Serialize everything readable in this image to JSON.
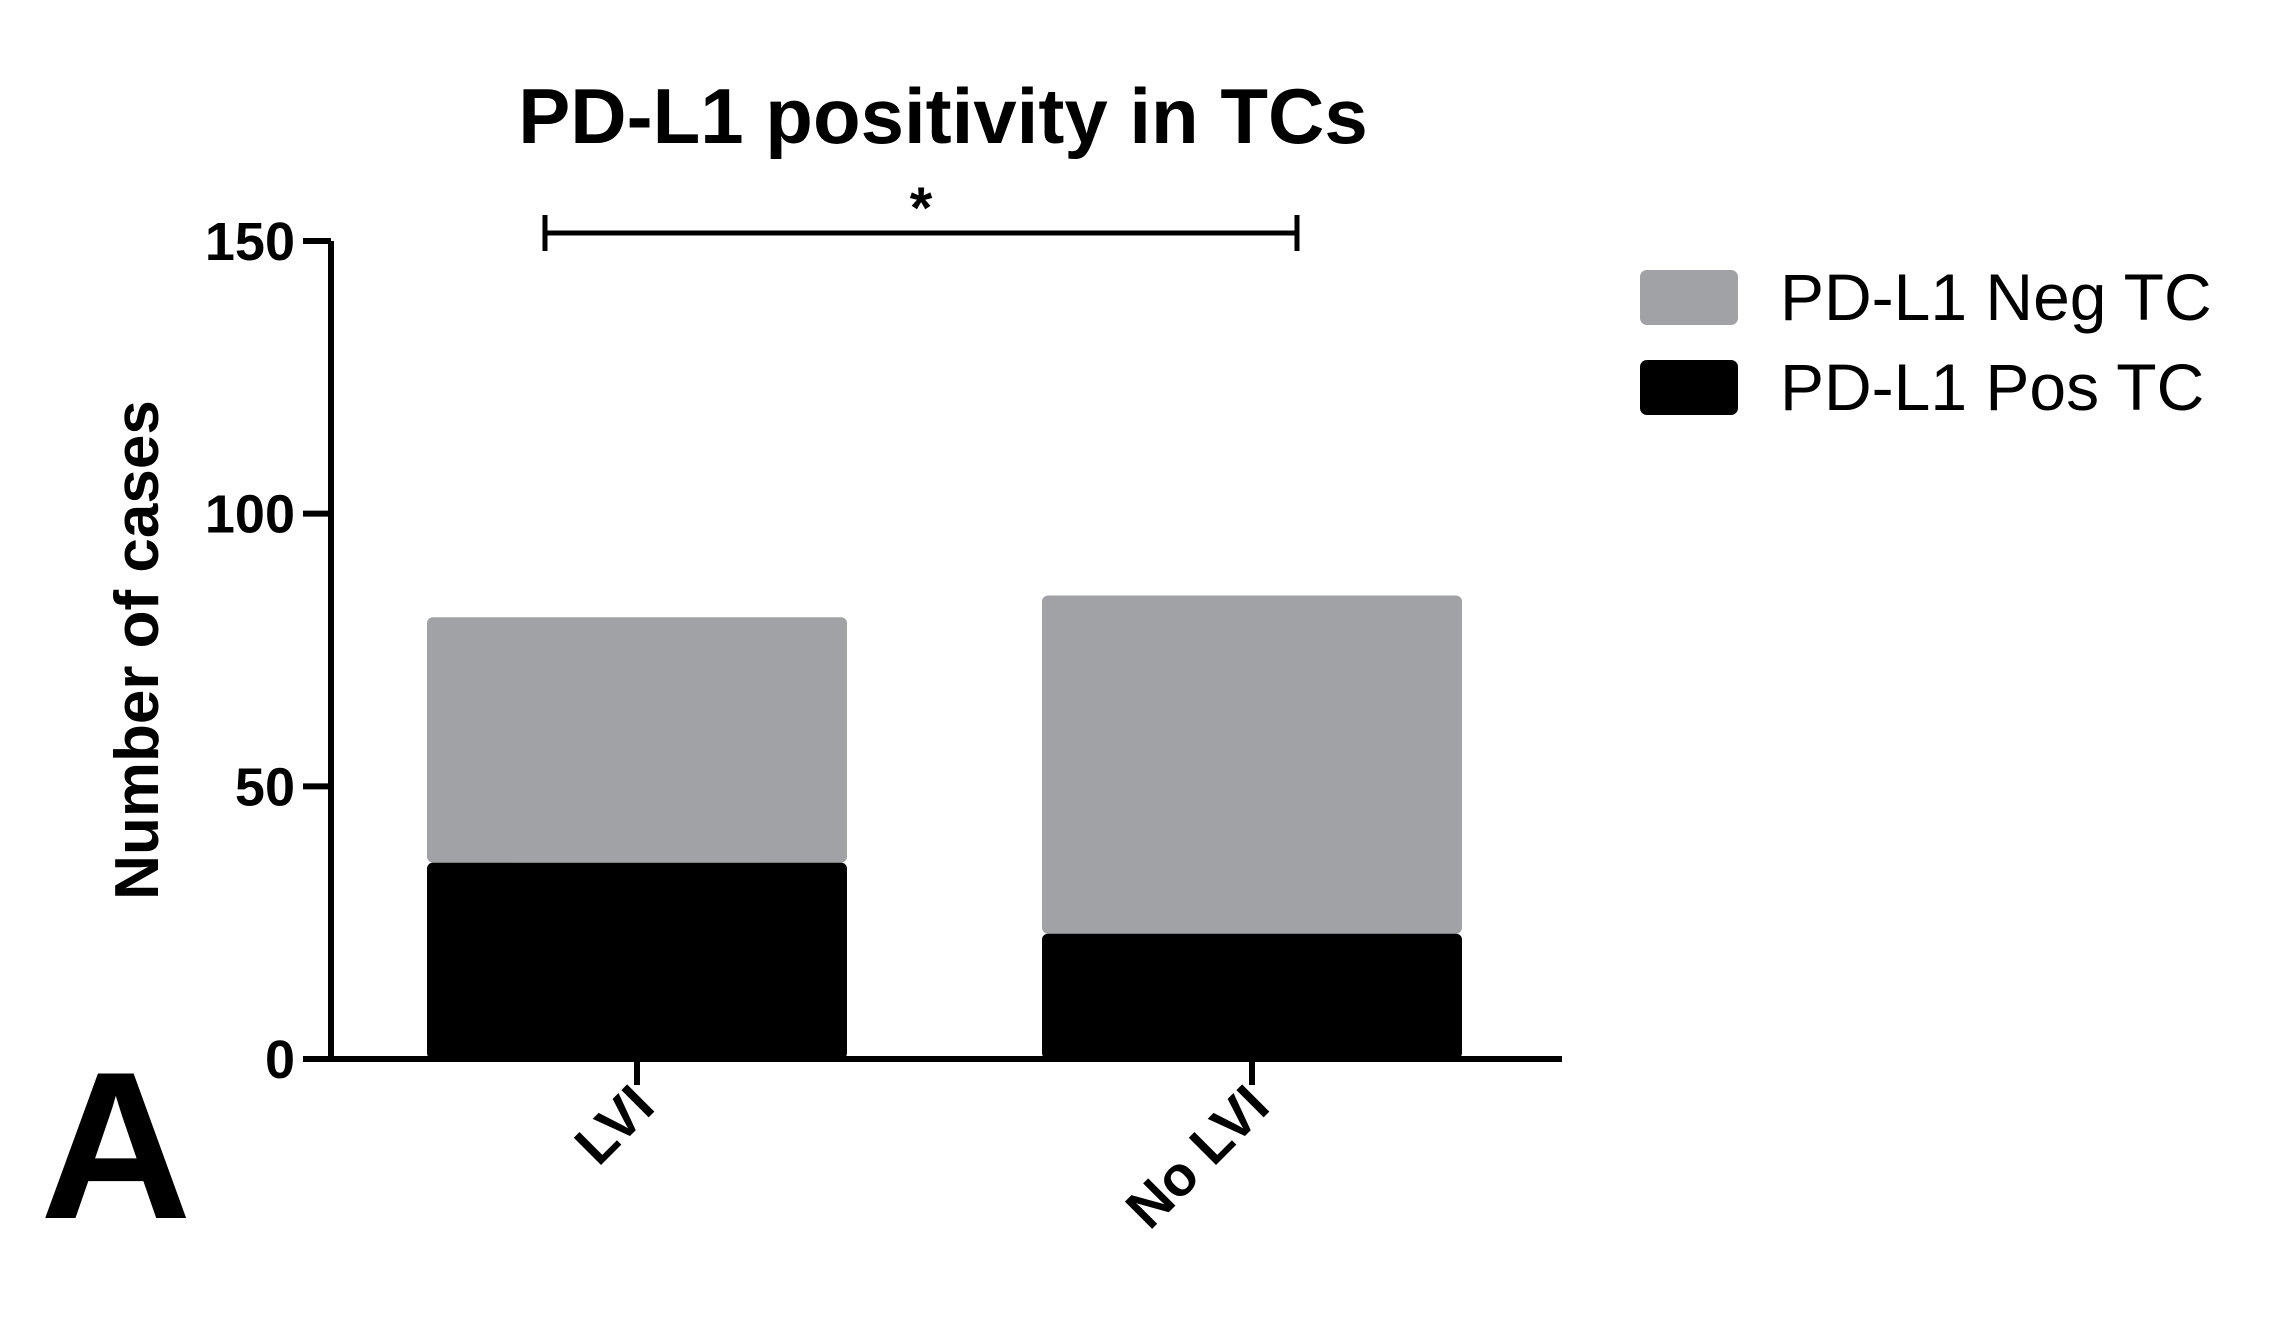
{
  "chart_data": {
    "type": "bar",
    "stacked": true,
    "title": "PD-L1 positivity in TCs",
    "xlabel": "",
    "ylabel": "Number of cases",
    "ylim": [
      0,
      150
    ],
    "yticks": [
      0,
      50,
      100,
      150
    ],
    "categories": [
      "LVI",
      "No LVI"
    ],
    "series": [
      {
        "name": "PD-L1 Pos TC",
        "values": [
          36,
          23
        ],
        "color": "#000000"
      },
      {
        "name": "PD-L1 Neg TC",
        "values": [
          45,
          62
        ],
        "color": "#a1a2a6"
      }
    ],
    "legend_position": "top-right",
    "legend_order": [
      "PD-L1 Neg TC",
      "PD-L1 Pos TC"
    ],
    "significance": {
      "between": [
        "LVI",
        "No LVI"
      ],
      "label": "*"
    },
    "panel_label": "A",
    "grid": false
  }
}
